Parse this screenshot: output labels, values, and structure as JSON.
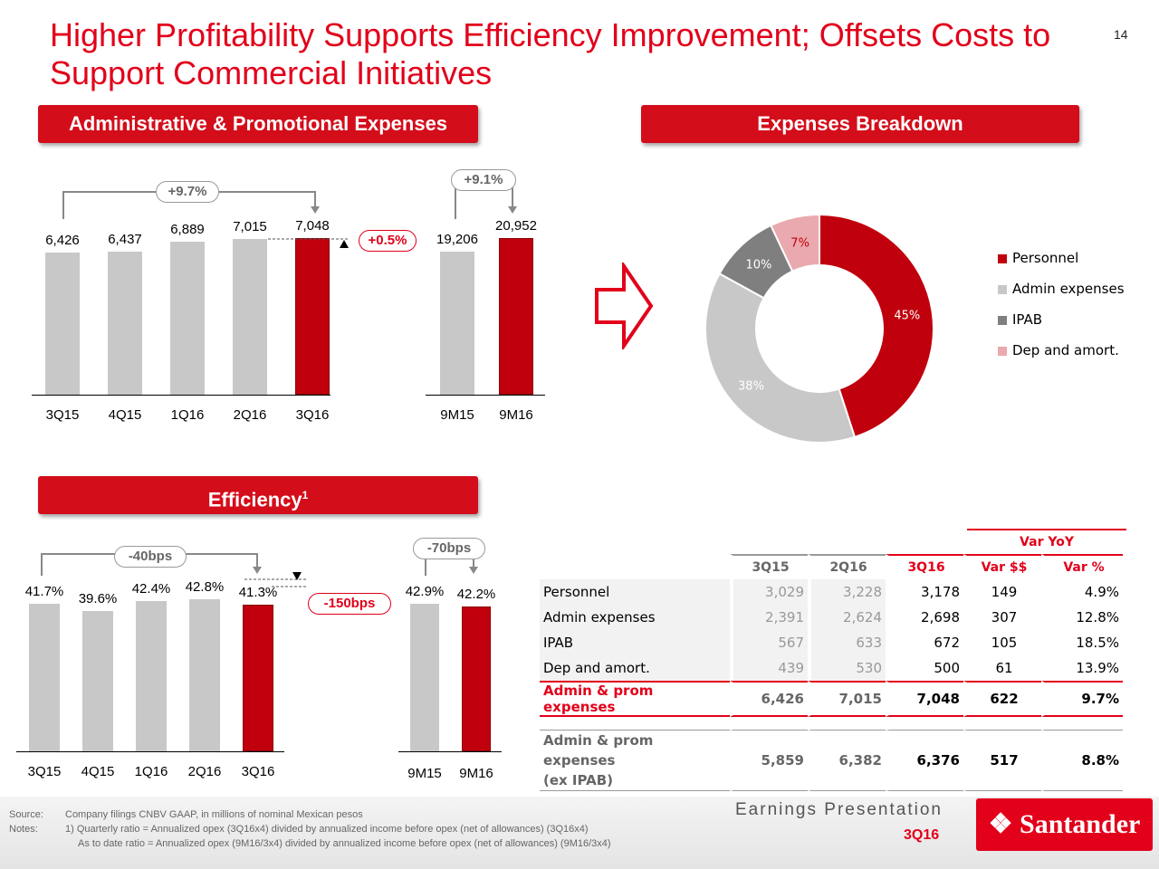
{
  "page_number": "14",
  "title": "Higher Profitability Supports Efficiency Improvement; Offsets Costs to Support Commercial Initiatives",
  "admin_section": {
    "header": "Administrative & Promotional Expenses",
    "quarterly": {
      "categories": [
        "3Q15",
        "4Q15",
        "1Q16",
        "2Q16",
        "3Q16"
      ],
      "values": [
        6426,
        6437,
        6889,
        7015,
        7048
      ],
      "labels": [
        "6,426",
        "6,437",
        "6,889",
        "7,015",
        "7,048"
      ],
      "yoy_change": "+9.7%",
      "qoq_change": "+0.5%"
    },
    "ytd": {
      "categories": [
        "9M15",
        "9M16"
      ],
      "values": [
        19206,
        20952
      ],
      "labels": [
        "19,206",
        "20,952"
      ],
      "change": "+9.1%"
    }
  },
  "breakdown_section": {
    "header": "Expenses Breakdown",
    "slices": [
      {
        "name": "Personnel",
        "value": 45,
        "label": "45%",
        "color": "#c0000c"
      },
      {
        "name": "Admin expenses",
        "value": 38,
        "label": "38%",
        "color": "#c8c8c8"
      },
      {
        "name": "IPAB",
        "value": 10,
        "label": "10%",
        "color": "#7f7f7f"
      },
      {
        "name": "Dep and amort.",
        "value": 7,
        "label": "7%",
        "color": "#e9a9ae"
      }
    ]
  },
  "efficiency_section": {
    "header": "Efficiency",
    "footnote_mark": "1",
    "quarterly": {
      "categories": [
        "3Q15",
        "4Q15",
        "1Q16",
        "2Q16",
        "3Q16"
      ],
      "values": [
        41.7,
        39.6,
        42.4,
        42.8,
        41.3
      ],
      "labels": [
        "41.7%",
        "39.6%",
        "42.4%",
        "42.8%",
        "41.3%"
      ],
      "yoy_change": "-40bps",
      "qoq_change": "-150bps"
    },
    "ytd": {
      "categories": [
        "9M15",
        "9M16"
      ],
      "values": [
        42.9,
        42.2
      ],
      "labels": [
        "42.9%",
        "42.2%"
      ],
      "change": "-70bps"
    }
  },
  "table": {
    "group_header": "Var YoY",
    "headers": [
      "3Q15",
      "2Q16",
      "3Q16",
      "Var $$",
      "Var %"
    ],
    "rows": [
      {
        "label": "Personnel",
        "cells": [
          "3,029",
          "3,228",
          "3,178",
          "149",
          "4.9%"
        ]
      },
      {
        "label": "Admin expenses",
        "cells": [
          "2,391",
          "2,624",
          "2,698",
          "307",
          "12.8%"
        ]
      },
      {
        "label": "IPAB",
        "cells": [
          "567",
          "633",
          "672",
          "105",
          "18.5%"
        ]
      },
      {
        "label": "Dep and amort.",
        "cells": [
          "439",
          "530",
          "500",
          "61",
          "13.9%"
        ]
      }
    ],
    "total_row": {
      "label": "Admin & prom expenses",
      "cells": [
        "6,426",
        "7,015",
        "7,048",
        "622",
        "9.7%"
      ]
    },
    "ex_row": {
      "label_line1": "Admin & prom expenses",
      "label_line2": "(ex IPAB)",
      "cells": [
        "5,859",
        "6,382",
        "6,376",
        "517",
        "8.8%"
      ]
    }
  },
  "chart_data": [
    {
      "type": "bar",
      "title": "Administrative & Promotional Expenses",
      "categories": [
        "3Q15",
        "4Q15",
        "1Q16",
        "2Q16",
        "3Q16"
      ],
      "values": [
        6426,
        6437,
        6889,
        7015,
        7048
      ]
    },
    {
      "type": "bar",
      "categories": [
        "9M15",
        "9M16"
      ],
      "values": [
        19206,
        20952
      ]
    },
    {
      "type": "pie",
      "title": "Expenses Breakdown",
      "categories": [
        "Personnel",
        "Admin expenses",
        "IPAB",
        "Dep and amort."
      ],
      "values": [
        45,
        38,
        10,
        7
      ]
    },
    {
      "type": "bar",
      "title": "Efficiency",
      "categories": [
        "3Q15",
        "4Q15",
        "1Q16",
        "2Q16",
        "3Q16"
      ],
      "values": [
        41.7,
        39.6,
        42.4,
        42.8,
        41.3
      ]
    },
    {
      "type": "bar",
      "categories": [
        "9M15",
        "9M16"
      ],
      "values": [
        42.9,
        42.2
      ]
    }
  ],
  "footer": {
    "source_label": "Source:",
    "source_text": "Company filings CNBV GAAP, in millions of  nominal Mexican pesos",
    "notes_label": "Notes:",
    "note1": "1) Quarterly ratio = Annualized opex (3Q16x4) divided by annualized income before opex (net of allowances) (3Q16x4)",
    "note2": "As to date ratio = Annualized opex (9M16/3x4) divided by annualized income before opex (net of allowances) (9M16/3x4)",
    "presentation": "Earnings Presentation",
    "period": "3Q16",
    "brand": "Santander"
  }
}
